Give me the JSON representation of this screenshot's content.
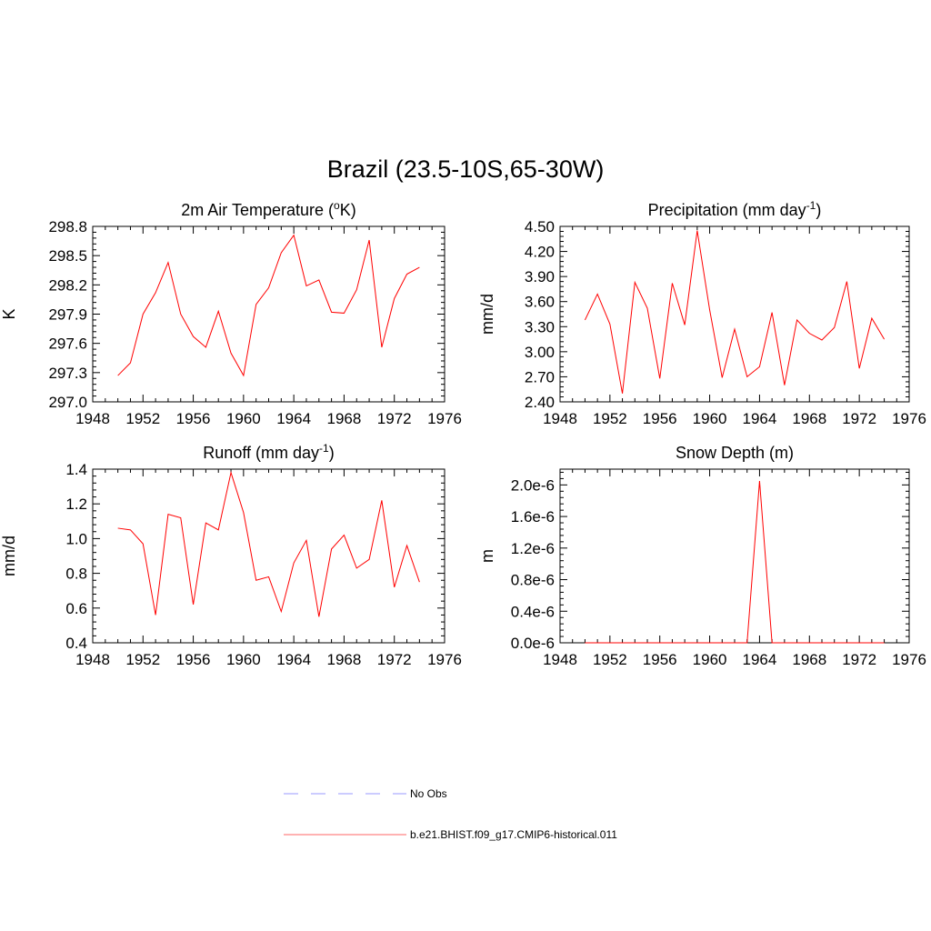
{
  "figure": {
    "title": "Brazil (23.5-10S,65-30W)"
  },
  "legend": {
    "entries": [
      {
        "label": "No Obs",
        "color": "#9999ff",
        "dashed": true
      },
      {
        "label": "b.e21.BHIST.f09_g17.CMIP6-historical.011",
        "color": "#ff6666",
        "dashed": false
      }
    ]
  },
  "chart_data": [
    {
      "type": "line",
      "title": "2m Air Temperature (",
      "title_sup": "o",
      "title_tail": "K)",
      "ylabel": "K",
      "xlim": [
        1948,
        1976
      ],
      "ylim": [
        297.0,
        298.8
      ],
      "xticks": [
        1948,
        1952,
        1956,
        1960,
        1964,
        1968,
        1972,
        1976
      ],
      "xtick_labels": [
        "1948",
        "1952",
        "1956",
        "1960",
        "1964",
        "1968",
        "1972",
        "1976"
      ],
      "yticks": [
        297.0,
        297.3,
        297.6,
        297.9,
        298.2,
        298.5,
        298.8
      ],
      "ytick_labels": [
        "297.0",
        "297.3",
        "297.6",
        "297.9",
        "298.2",
        "298.5",
        "298.8"
      ],
      "series": [
        {
          "color": "#ff0000",
          "x": [
            1950,
            1951,
            1952,
            1953,
            1954,
            1955,
            1956,
            1957,
            1958,
            1959,
            1960,
            1961,
            1962,
            1963,
            1964,
            1965,
            1966,
            1967,
            1968,
            1969,
            1970,
            1971,
            1972,
            1973,
            1974
          ],
          "y": [
            297.27,
            297.4,
            297.9,
            298.12,
            298.43,
            297.9,
            297.67,
            297.56,
            297.93,
            297.5,
            297.27,
            298.0,
            298.17,
            298.53,
            298.71,
            298.19,
            298.25,
            297.92,
            297.91,
            298.15,
            298.66,
            297.56,
            298.06,
            298.31,
            298.38
          ]
        }
      ]
    },
    {
      "type": "line",
      "title": "Precipitation (mm day",
      "title_sup": "-1",
      "title_tail": ")",
      "ylabel": "mm/d",
      "xlim": [
        1948,
        1976
      ],
      "ylim": [
        2.4,
        4.5
      ],
      "xticks": [
        1948,
        1952,
        1956,
        1960,
        1964,
        1968,
        1972,
        1976
      ],
      "xtick_labels": [
        "1948",
        "1952",
        "1956",
        "1960",
        "1964",
        "1968",
        "1972",
        "1976"
      ],
      "yticks": [
        2.4,
        2.7,
        3.0,
        3.3,
        3.6,
        3.9,
        4.2,
        4.5
      ],
      "ytick_labels": [
        "2.40",
        "2.70",
        "3.00",
        "3.30",
        "3.60",
        "3.90",
        "4.20",
        "4.50"
      ],
      "series": [
        {
          "color": "#ff0000",
          "x": [
            1950,
            1951,
            1952,
            1953,
            1954,
            1955,
            1956,
            1957,
            1958,
            1959,
            1960,
            1961,
            1962,
            1963,
            1964,
            1965,
            1966,
            1967,
            1968,
            1969,
            1970,
            1971,
            1972,
            1973,
            1974
          ],
          "y": [
            3.38,
            3.69,
            3.33,
            2.5,
            3.83,
            3.52,
            2.68,
            3.82,
            3.32,
            4.45,
            3.5,
            2.69,
            3.27,
            2.7,
            2.82,
            3.47,
            2.6,
            3.38,
            3.22,
            3.14,
            3.29,
            3.84,
            2.8,
            3.4,
            3.15
          ]
        }
      ]
    },
    {
      "type": "line",
      "title": "Runoff (mm day",
      "title_sup": "-1",
      "title_tail": ")",
      "ylabel": "mm/d",
      "xlim": [
        1948,
        1976
      ],
      "ylim": [
        0.4,
        1.4
      ],
      "xticks": [
        1948,
        1952,
        1956,
        1960,
        1964,
        1968,
        1972,
        1976
      ],
      "xtick_labels": [
        "1948",
        "1952",
        "1956",
        "1960",
        "1964",
        "1968",
        "1972",
        "1976"
      ],
      "yticks": [
        0.4,
        0.6,
        0.8,
        1.0,
        1.2,
        1.4
      ],
      "ytick_labels": [
        "0.4",
        "0.6",
        "0.8",
        "1.0",
        "1.2",
        "1.4"
      ],
      "series": [
        {
          "color": "#ff0000",
          "x": [
            1950,
            1951,
            1952,
            1953,
            1954,
            1955,
            1956,
            1957,
            1958,
            1959,
            1960,
            1961,
            1962,
            1963,
            1964,
            1965,
            1966,
            1967,
            1968,
            1969,
            1970,
            1971,
            1972,
            1973,
            1974
          ],
          "y": [
            1.06,
            1.05,
            0.97,
            0.56,
            1.14,
            1.12,
            0.62,
            1.09,
            1.05,
            1.38,
            1.15,
            0.76,
            0.78,
            0.58,
            0.86,
            0.99,
            0.55,
            0.94,
            1.02,
            0.83,
            0.88,
            1.22,
            0.72,
            0.96,
            0.75
          ]
        }
      ]
    },
    {
      "type": "line",
      "title": "Snow Depth (m)",
      "title_sup": "",
      "title_tail": "",
      "ylabel": "m",
      "xlim": [
        1948,
        1976
      ],
      "ylim": [
        0,
        2.2e-06
      ],
      "xticks": [
        1948,
        1952,
        1956,
        1960,
        1964,
        1968,
        1972,
        1976
      ],
      "xtick_labels": [
        "1948",
        "1952",
        "1956",
        "1960",
        "1964",
        "1968",
        "1972",
        "1976"
      ],
      "yticks": [
        0,
        4e-07,
        8e-07,
        1.2e-06,
        1.6e-06,
        2e-06
      ],
      "ytick_labels": [
        "0.0e-6",
        "0.4e-6",
        "0.8e-6",
        "1.2e-6",
        "1.6e-6",
        "2.0e-6"
      ],
      "series": [
        {
          "color": "#ff0000",
          "x": [
            1950,
            1951,
            1952,
            1953,
            1954,
            1955,
            1956,
            1957,
            1958,
            1959,
            1960,
            1961,
            1962,
            1963,
            1964,
            1965,
            1966,
            1967,
            1968,
            1969,
            1970,
            1971,
            1972,
            1973,
            1974
          ],
          "y": [
            0,
            0,
            0,
            0,
            0,
            0,
            0,
            0,
            0,
            0,
            0,
            0,
            0,
            0,
            2.05e-06,
            0,
            0,
            0,
            0,
            0,
            0,
            0,
            0,
            0,
            0
          ]
        }
      ]
    }
  ]
}
